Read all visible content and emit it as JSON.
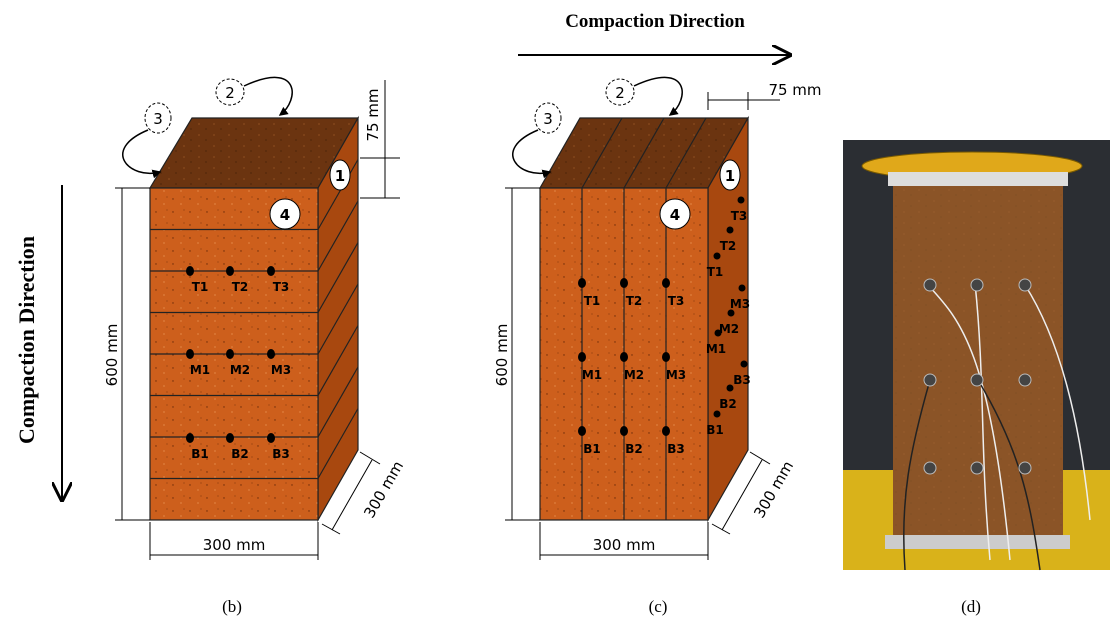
{
  "direction_label": "Compaction Direction",
  "panels": [
    {
      "caption": "(b)",
      "height": "600 mm",
      "width": "300 mm",
      "depth": "300 mm",
      "layer": "75 mm",
      "faces": [
        "1",
        "2",
        "3",
        "4"
      ],
      "sensors": [
        "T1",
        "T2",
        "T3",
        "M1",
        "M2",
        "M3",
        "B1",
        "B2",
        "B3"
      ]
    },
    {
      "caption": "(c)",
      "height": "600 mm",
      "width": "300 mm",
      "depth": "300 mm",
      "layer": "75 mm",
      "faces": [
        "1",
        "2",
        "3",
        "4"
      ],
      "sensors": [
        "T1",
        "T2",
        "T3",
        "M1",
        "M2",
        "M3",
        "B1",
        "B2",
        "B3"
      ],
      "side_sensors": [
        "T3",
        "T2",
        "T1",
        "M3",
        "M2",
        "M1",
        "B3",
        "B2",
        "B1"
      ]
    },
    {
      "caption": "(d)"
    }
  ]
}
